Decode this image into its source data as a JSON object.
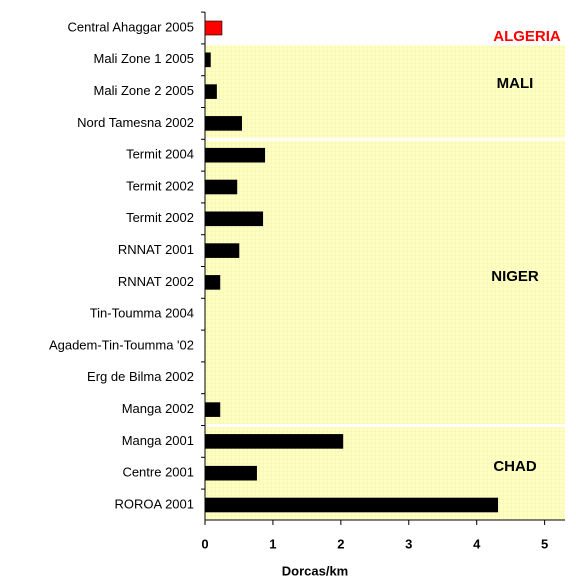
{
  "chart_data": {
    "type": "bar",
    "orientation": "horizontal",
    "x_label": "Dorcas/km",
    "categories": [
      "Central Ahaggar 2005",
      "Mali Zone 1 2005",
      "Mali Zone 2 2005",
      "Nord Tamesna 2002",
      "Termit 2004",
      "Termit 2002",
      "Termit 2002",
      "RNNAT 2001",
      "RNNAT 2002",
      "Tin-Toumma 2004",
      "Agadem-Tin-Toumma '02",
      "Erg de Bilma 2002",
      "Manga 2002",
      "Manga 2001",
      "Centre 2001",
      "ROROA 2001"
    ],
    "values": [
      0.25,
      0.08,
      0.17,
      0.54,
      0.88,
      0.47,
      0.85,
      0.5,
      0.22,
      0,
      0,
      0,
      0.22,
      2.03,
      0.76,
      4.31
    ],
    "colors": [
      "#ff0000",
      "#000000",
      "#000000",
      "#000000",
      "#000000",
      "#000000",
      "#000000",
      "#000000",
      "#000000",
      "#000000",
      "#000000",
      "#000000",
      "#000000",
      "#000000",
      "#000000",
      "#000000"
    ],
    "xlim": [
      0,
      5.3
    ],
    "xticks": [
      0,
      1,
      2,
      3,
      4,
      5
    ],
    "regions": [
      {
        "label": "ALGERIA",
        "color": "#ff0000"
      },
      {
        "label": "MALI",
        "color": "#000000"
      },
      {
        "label": "NIGER",
        "color": "#000000"
      },
      {
        "label": "CHAD",
        "color": "#000000"
      }
    ]
  }
}
